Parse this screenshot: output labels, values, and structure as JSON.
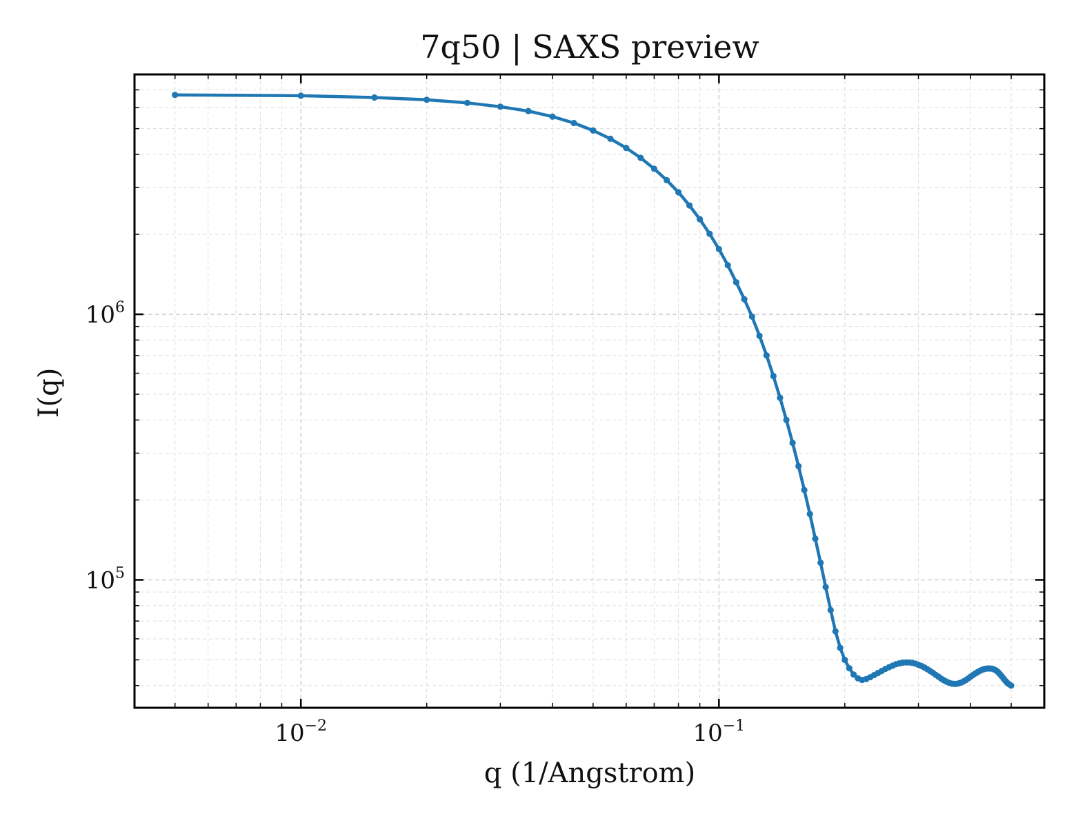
{
  "chart_data": {
    "type": "line",
    "title": "7q50 | SAXS preview",
    "xlabel": "q (1/Angstrom)",
    "ylabel": "I(q)",
    "xscale": "log",
    "yscale": "log",
    "xlim": [
      0.004,
      0.6
    ],
    "ylim": [
      33000,
      8000000
    ],
    "grid": true,
    "x_ticks": [
      {
        "value": 0.01,
        "base": "10",
        "exp": "−2"
      },
      {
        "value": 0.1,
        "base": "10",
        "exp": "−1"
      }
    ],
    "y_ticks": [
      {
        "value": 100000,
        "base": "10",
        "exp": "5"
      },
      {
        "value": 1000000,
        "base": "10",
        "exp": "6"
      }
    ],
    "series": [
      {
        "color": "#1f77b4",
        "x": [
          0.005,
          0.01,
          0.015,
          0.02,
          0.025,
          0.03,
          0.035,
          0.04,
          0.045,
          0.05,
          0.055,
          0.06,
          0.065,
          0.07,
          0.075,
          0.08,
          0.085,
          0.09,
          0.095,
          0.1,
          0.105,
          0.11,
          0.115,
          0.12,
          0.125,
          0.13,
          0.135,
          0.14,
          0.145,
          0.15,
          0.155,
          0.16,
          0.165,
          0.17,
          0.175,
          0.18,
          0.185,
          0.19,
          0.195,
          0.2,
          0.205,
          0.21,
          0.215,
          0.22,
          0.225,
          0.23,
          0.235,
          0.24,
          0.245,
          0.25,
          0.255,
          0.26,
          0.265,
          0.27,
          0.275,
          0.28,
          0.285,
          0.29,
          0.295,
          0.3,
          0.305,
          0.31,
          0.315,
          0.32,
          0.325,
          0.33,
          0.335,
          0.34,
          0.345,
          0.35,
          0.355,
          0.36,
          0.365,
          0.37,
          0.375,
          0.38,
          0.385,
          0.39,
          0.395,
          0.4,
          0.405,
          0.41,
          0.415,
          0.42,
          0.425,
          0.43,
          0.435,
          0.44,
          0.445,
          0.45,
          0.455,
          0.46,
          0.465,
          0.47,
          0.475,
          0.48,
          0.485,
          0.49,
          0.495,
          0.5
        ],
        "y": [
          6700000,
          6650000,
          6550000,
          6420000,
          6250000,
          6050000,
          5820000,
          5550000,
          5250000,
          4920000,
          4580000,
          4230000,
          3880000,
          3530000,
          3200000,
          2880000,
          2570000,
          2280000,
          2010000,
          1760000,
          1530000,
          1320000,
          1140000,
          980000,
          830000,
          700000,
          585000,
          485000,
          400000,
          328000,
          268000,
          218000,
          177000,
          143000,
          116000,
          94000,
          77000,
          64000,
          55500,
          50000,
          46500,
          44000,
          42600,
          42000,
          42300,
          43000,
          43800,
          44600,
          45400,
          46200,
          46900,
          47500,
          48100,
          48500,
          48800,
          48900,
          48900,
          48700,
          48400,
          47900,
          47400,
          46800,
          46100,
          45400,
          44700,
          43900,
          43200,
          42500,
          41900,
          41400,
          41000,
          40700,
          40600,
          40600,
          40800,
          41100,
          41500,
          42000,
          42600,
          43200,
          43800,
          44400,
          44900,
          45400,
          45800,
          46100,
          46300,
          46400,
          46400,
          46300,
          46000,
          45600,
          45000,
          44200,
          43300,
          42400,
          41600,
          40900,
          40400,
          40000
        ]
      }
    ]
  }
}
